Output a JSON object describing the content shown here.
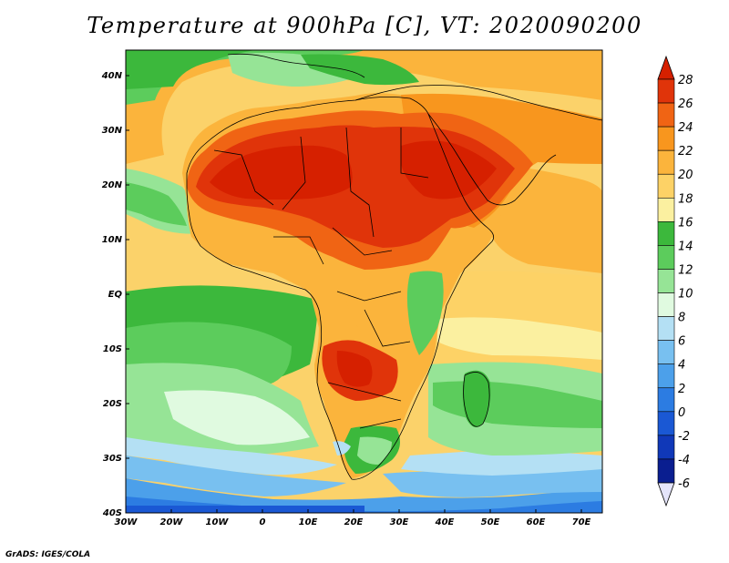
{
  "title": "Temperature at 900hPa [C], VT: 2020090200",
  "credit": "GrADS: IGES/COLA",
  "map": {
    "lat_labels": [
      "40N",
      "30N",
      "20N",
      "10N",
      "EQ",
      "10S",
      "20S",
      "30S",
      "40S"
    ],
    "lon_labels": [
      "30W",
      "20W",
      "10W",
      "0",
      "10E",
      "20E",
      "30E",
      "40E",
      "50E",
      "60E",
      "70E"
    ]
  },
  "colorbar": {
    "labels": [
      "28",
      "26",
      "24",
      "22",
      "20",
      "18",
      "16",
      "14",
      "12",
      "10",
      "8",
      "6",
      "4",
      "2",
      "0",
      "-2",
      "-4",
      "-6"
    ],
    "colors": {
      "top_arrow": "#d62000",
      "bands": [
        "#e0340a",
        "#f06414",
        "#f8961e",
        "#fbb43c",
        "#fdd266",
        "#fbf0a0",
        "#3cb83c",
        "#5ccc5c",
        "#96e496",
        "#e0fae0",
        "#b4e0f4",
        "#78c0f0",
        "#4ca0ea",
        "#2c7ce2",
        "#1a58d4",
        "#1038b8",
        "#0a1e90"
      ],
      "bottom_arrow": "#e4e4fa"
    }
  }
}
